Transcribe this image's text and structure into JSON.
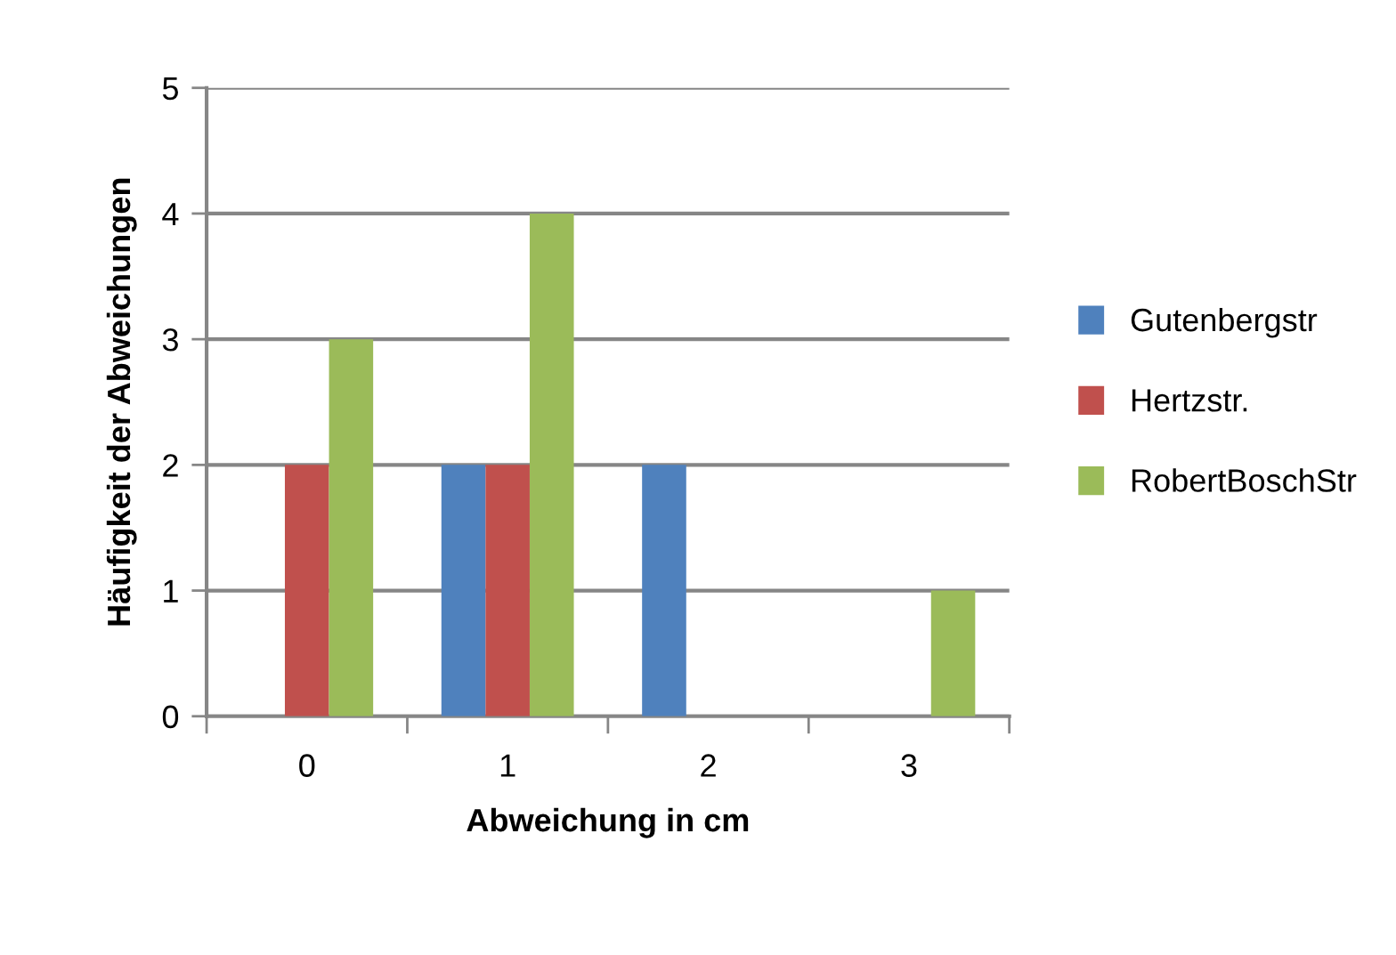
{
  "chart_data": {
    "type": "bar",
    "xlabel": "Abweichung in cm",
    "ylabel": "Häufigkeit der Abweichungen",
    "categories": [
      "0",
      "1",
      "2",
      "3"
    ],
    "series": [
      {
        "name": "Gutenbergstr",
        "color": "#4f81bd",
        "values": [
          0,
          2,
          2,
          0
        ]
      },
      {
        "name": "Hertzstr.",
        "color": "#c0504d",
        "values": [
          2,
          2,
          0,
          0
        ]
      },
      {
        "name": "RobertBoschStr",
        "color": "#9bbb59",
        "values": [
          3,
          4,
          0,
          1
        ]
      }
    ],
    "ylim": [
      0,
      5
    ],
    "yticks": [
      0,
      1,
      2,
      3,
      4,
      5
    ],
    "grid": "y",
    "legend": "right"
  }
}
